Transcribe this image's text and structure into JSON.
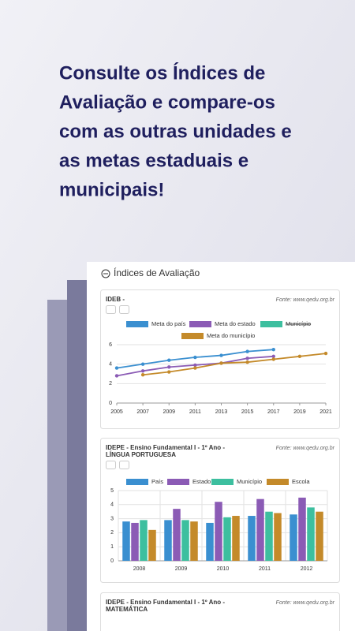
{
  "headline": [
    "Consulte os Índices de",
    "Avaliação e compare-os",
    "com as outras unidades e",
    "as metas estaduais e",
    "municipais!"
  ],
  "panel_title": "Índices de Avaliação",
  "chart_data": [
    {
      "type": "line",
      "title": "IDEB -",
      "source": "Fonte: www.qedu.org.br",
      "x": [
        2005,
        2007,
        2009,
        2011,
        2013,
        2015,
        2017,
        2019,
        2021
      ],
      "xlim": [
        2005,
        2021
      ],
      "xticks": [
        2005,
        2007,
        2009,
        2011,
        2013,
        2015,
        2017,
        2019,
        2021
      ],
      "ylim": [
        0,
        6
      ],
      "yticks": [
        0,
        2,
        4,
        6
      ],
      "grid": true,
      "series": [
        {
          "name": "Meta do país",
          "color": "#3a8fd0",
          "values": [
            3.6,
            4.0,
            4.4,
            4.7,
            4.9,
            5.3,
            5.5,
            null,
            null
          ]
        },
        {
          "name": "Meta do estado",
          "color": "#8b5bb5",
          "values": [
            2.8,
            3.3,
            3.7,
            3.9,
            4.1,
            4.6,
            4.8,
            null,
            null
          ]
        },
        {
          "name": "Município",
          "color": "#3dbf9f",
          "hidden": true,
          "values": [
            null,
            null,
            null,
            null,
            null,
            null,
            null,
            null,
            null
          ]
        },
        {
          "name": "Meta do município",
          "color": "#c48a2a",
          "values": [
            null,
            2.9,
            3.2,
            3.6,
            4.1,
            4.2,
            4.5,
            4.8,
            5.1
          ]
        }
      ]
    },
    {
      "type": "bar",
      "title": "IDEPE - Ensino Fundamental I - 1º Ano - LÍNGUA PORTUGUESA",
      "source": "Fonte: www.qedu.org.br",
      "categories": [
        "2008",
        "2009",
        "2010",
        "2011",
        "2012"
      ],
      "ylim": [
        0,
        5
      ],
      "yticks": [
        0,
        1,
        2,
        3,
        4,
        5
      ],
      "grid": true,
      "series": [
        {
          "name": "País",
          "color": "#3a8fd0",
          "values": [
            2.8,
            2.9,
            2.7,
            3.2,
            3.3
          ]
        },
        {
          "name": "Estado",
          "color": "#8b5bb5",
          "values": [
            2.7,
            3.7,
            4.2,
            4.4,
            4.5
          ]
        },
        {
          "name": "Município",
          "color": "#3dbf9f",
          "values": [
            2.9,
            2.9,
            3.1,
            3.5,
            3.8
          ]
        },
        {
          "name": "Escola",
          "color": "#c48a2a",
          "values": [
            2.2,
            2.8,
            3.2,
            3.4,
            3.5
          ]
        }
      ]
    }
  ],
  "third_card": {
    "title": "IDEPE - Ensino Fundamental I - 1º Ano - MATEMÁTICA",
    "source": "Fonte: www.qedu.org.br"
  }
}
